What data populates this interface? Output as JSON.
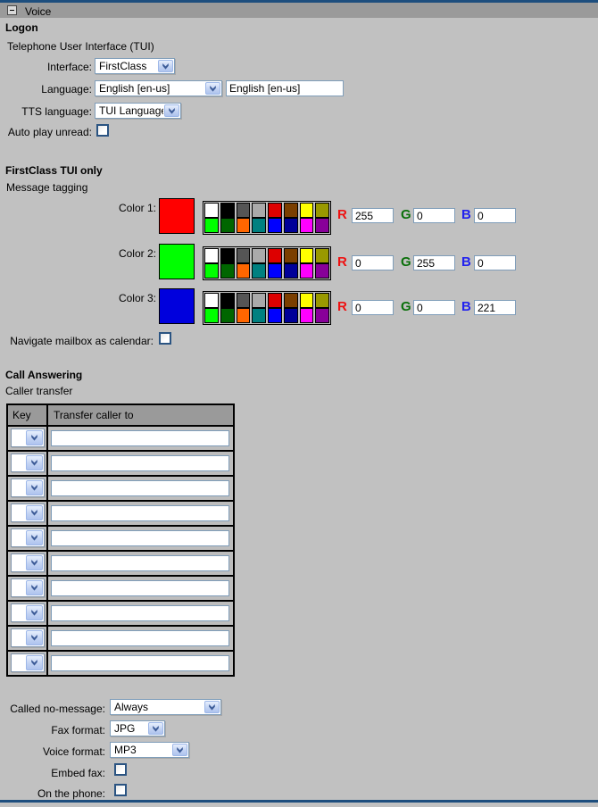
{
  "window": {
    "title": "Voice",
    "icons": {
      "collapse": "minus-box",
      "chevron_down": "v"
    },
    "colors": {
      "frame_line": "#1d4e7e",
      "titlebar_bg": "#9a9a9a",
      "body_bg": "#c1c1c1",
      "input_border": "#7f9db9",
      "checkbox_border": "#2b5482",
      "table_header_bg": "#9a9a9a"
    }
  },
  "logon": {
    "heading": "Logon",
    "subheading": "Telephone User Interface (TUI)",
    "interface": {
      "label": "Interface:",
      "value": "FirstClass"
    },
    "language": {
      "label": "Language:",
      "value": "English [en-us]",
      "text_value": "English [en-us]"
    },
    "tts_language": {
      "label": "TTS language:",
      "value": "TUI Language"
    },
    "auto_play_unread": {
      "label": "Auto play unread:",
      "checked": false
    }
  },
  "tui_only": {
    "heading": "FirstClass TUI only",
    "subheading": "Message tagging",
    "palette": [
      "#ffffff",
      "#000000",
      "#555555",
      "#aaaaaa",
      "#dd0000",
      "#7b3f00",
      "#ffff00",
      "#999900",
      "#00ff00",
      "#006600",
      "#ff6600",
      "#008080",
      "#0000ff",
      "#000099",
      "#ff00ff",
      "#880099"
    ],
    "rgb_letters": {
      "r": "R",
      "g": "G",
      "b": "B",
      "r_color": "#ee1111",
      "g_color": "#0b700b",
      "b_color": "#2222ee"
    },
    "colors": [
      {
        "label": "Color 1:",
        "swatch": "#ff0000",
        "r": "255",
        "g": "0",
        "b": "0"
      },
      {
        "label": "Color 2:",
        "swatch": "#00ff00",
        "r": "0",
        "g": "255",
        "b": "0"
      },
      {
        "label": "Color 3:",
        "swatch": "#0000dd",
        "r": "0",
        "g": "0",
        "b": "221"
      }
    ],
    "navigate_mailbox": {
      "label": "Navigate mailbox as calendar:",
      "checked": false
    }
  },
  "call_answering": {
    "heading": "Call Answering",
    "subheading": "Caller transfer",
    "table": {
      "headers": [
        "Key",
        "Transfer caller to"
      ],
      "rows": [
        {
          "key": "",
          "transfer": ""
        },
        {
          "key": "",
          "transfer": ""
        },
        {
          "key": "",
          "transfer": ""
        },
        {
          "key": "",
          "transfer": ""
        },
        {
          "key": "",
          "transfer": ""
        },
        {
          "key": "",
          "transfer": ""
        },
        {
          "key": "",
          "transfer": ""
        },
        {
          "key": "",
          "transfer": ""
        },
        {
          "key": "",
          "transfer": ""
        },
        {
          "key": "",
          "transfer": ""
        }
      ]
    },
    "called_no_message": {
      "label": "Called no-message:",
      "value": "Always"
    },
    "fax_format": {
      "label": "Fax format:",
      "value": "JPG"
    },
    "voice_format": {
      "label": "Voice format:",
      "value": "MP3"
    },
    "embed_fax": {
      "label": "Embed fax:",
      "checked": false
    },
    "on_the_phone": {
      "label": "On the phone:",
      "checked": false
    }
  }
}
